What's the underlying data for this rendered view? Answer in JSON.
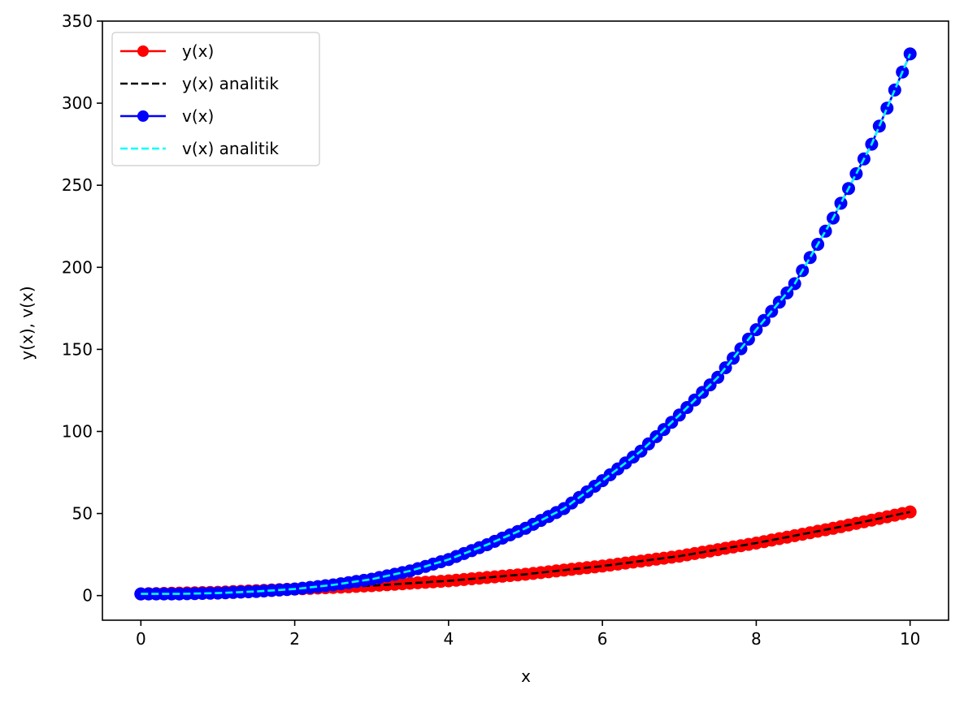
{
  "chart_data": {
    "type": "line",
    "xlabel": "x",
    "ylabel": "y(x), v(x)",
    "xlim": [
      -0.5,
      10.5
    ],
    "ylim": [
      -15,
      350
    ],
    "x_ticks": [
      0,
      2,
      4,
      6,
      8,
      10
    ],
    "y_ticks": [
      0,
      50,
      100,
      150,
      200,
      250,
      300,
      350
    ],
    "x_tick_labels": [
      "0",
      "2",
      "4",
      "6",
      "8",
      "10"
    ],
    "y_tick_labels": [
      "0",
      "50",
      "100",
      "150",
      "200",
      "250",
      "300",
      "350"
    ],
    "grid": false,
    "legend_position": "upper-left",
    "series": [
      {
        "name": "y(x)",
        "style": "solid-with-circle-markers",
        "color": "#ff0000",
        "x": [
          0,
          1,
          2,
          3,
          4,
          5,
          6,
          7,
          8,
          9,
          10
        ],
        "y": [
          1,
          2,
          4,
          6,
          9,
          13,
          18,
          24,
          32,
          41,
          51
        ]
      },
      {
        "name": "y(x) analitik",
        "style": "dashed",
        "color": "#000000",
        "x": [
          0,
          1,
          2,
          3,
          4,
          5,
          6,
          7,
          8,
          9,
          10
        ],
        "y": [
          1,
          2,
          4,
          6,
          9,
          13,
          18,
          24,
          32,
          41,
          51
        ]
      },
      {
        "name": "v(x)",
        "style": "solid-with-circle-markers",
        "color": "#0000ff",
        "x": [
          0,
          0.5,
          1,
          1.5,
          2,
          2.5,
          3,
          3.5,
          4,
          4.5,
          5,
          5.5,
          6,
          6.5,
          7,
          7.5,
          8,
          8.5,
          9,
          9.5,
          10
        ],
        "y": [
          1,
          1,
          1.5,
          2.5,
          4,
          6.5,
          10,
          15,
          22,
          31,
          41,
          53,
          70,
          88,
          110,
          133,
          162,
          190,
          230,
          275,
          330
        ]
      },
      {
        "name": "v(x) analitik",
        "style": "dashed",
        "color": "#00ffff",
        "x": [
          0,
          0.5,
          1,
          1.5,
          2,
          2.5,
          3,
          3.5,
          4,
          4.5,
          5,
          5.5,
          6,
          6.5,
          7,
          7.5,
          8,
          8.5,
          9,
          9.5,
          10
        ],
        "y": [
          1,
          1,
          1.5,
          2.5,
          4,
          6.5,
          10,
          15,
          22,
          31,
          41,
          53,
          70,
          88,
          110,
          133,
          162,
          190,
          230,
          275,
          330
        ]
      }
    ]
  }
}
